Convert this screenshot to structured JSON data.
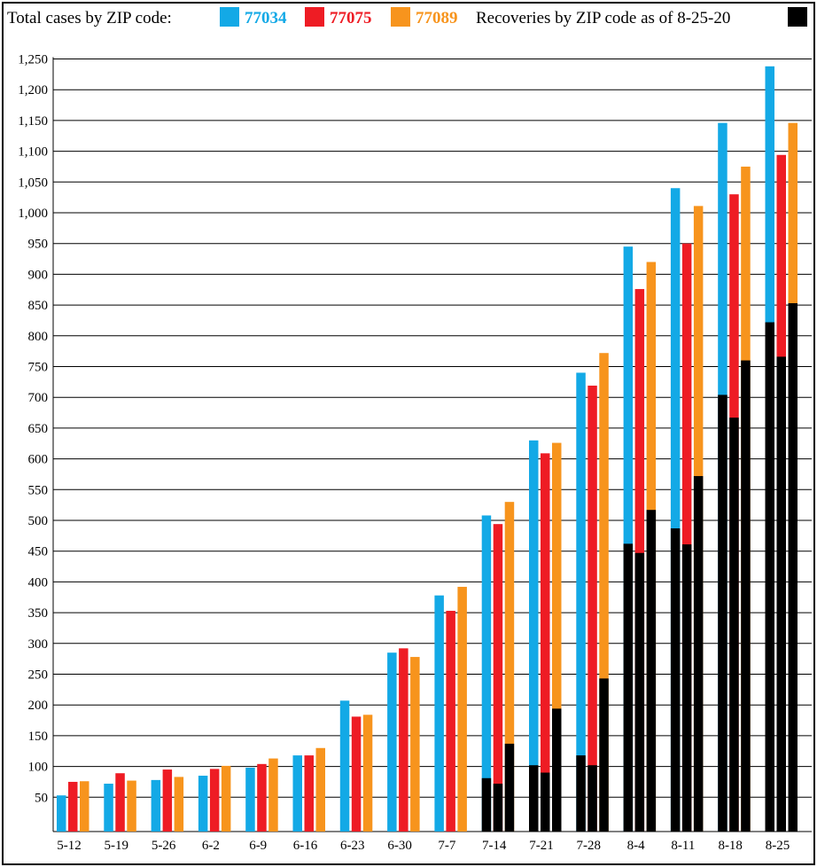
{
  "legend": {
    "cases_label": "Total cases by ZIP code:",
    "recoveries_label": "Recoveries by ZIP code as of 8-25-20"
  },
  "chart_data": {
    "type": "bar",
    "stacked_overlay": true,
    "categories": [
      "5-12",
      "5-19",
      "5-26",
      "6-2",
      "6-9",
      "6-16",
      "6-23",
      "6-30",
      "7-7",
      "7-14",
      "7-21",
      "7-28",
      "8-4",
      "8-11",
      "8-18",
      "8-25"
    ],
    "series": [
      {
        "name": "77034",
        "color": "#13a9e6",
        "values": [
          53,
          72,
          78,
          85,
          98,
          118,
          207,
          285,
          378,
          508,
          630,
          740,
          945,
          1040,
          1146,
          1238
        ]
      },
      {
        "name": "77075",
        "color": "#ee1c24",
        "values": [
          75,
          89,
          95,
          96,
          104,
          118,
          181,
          292,
          353,
          494,
          609,
          719,
          876,
          950,
          1030,
          1094
        ]
      },
      {
        "name": "77089",
        "color": "#f7941d",
        "values": [
          76,
          77,
          83,
          101,
          113,
          130,
          184,
          278,
          392,
          530,
          626,
          772,
          920,
          1011,
          1075,
          1146
        ]
      }
    ],
    "recoveries": {
      "name": "Recoveries by ZIP code as of 8-25-20",
      "color": "#000000",
      "values": [
        [
          0,
          0,
          0
        ],
        [
          0,
          0,
          0
        ],
        [
          0,
          0,
          0
        ],
        [
          0,
          0,
          0
        ],
        [
          0,
          0,
          0
        ],
        [
          0,
          0,
          0
        ],
        [
          0,
          0,
          0
        ],
        [
          0,
          0,
          0
        ],
        [
          0,
          0,
          0
        ],
        [
          81,
          72,
          137
        ],
        [
          102,
          90,
          194
        ],
        [
          118,
          102,
          243
        ],
        [
          462,
          447,
          517
        ],
        [
          487,
          461,
          572
        ],
        [
          704,
          667,
          760
        ],
        [
          822,
          766,
          853
        ]
      ]
    },
    "yticks": [
      50,
      100,
      150,
      200,
      250,
      300,
      350,
      400,
      450,
      500,
      550,
      600,
      650,
      700,
      750,
      800,
      850,
      900,
      950,
      1000,
      1050,
      1100,
      1150,
      1200,
      1250
    ],
    "ylim": [
      0,
      1275
    ],
    "grid": true,
    "legend_position": "top",
    "title": "",
    "xlabel": "",
    "ylabel": ""
  }
}
